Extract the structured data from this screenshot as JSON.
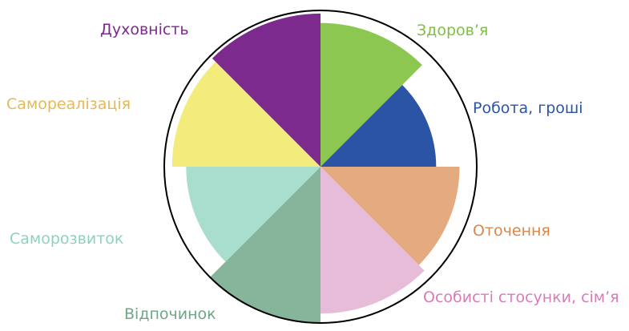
{
  "chart_data": {
    "type": "polar",
    "categories": [
      "Здоров’я",
      "Робота, гроші",
      "Оточення",
      "Особисті стосунки, сім’я",
      "Відпочинок",
      "Саморозвиток",
      "Самореалізація",
      "Духовність"
    ],
    "values": [
      9.2,
      7.4,
      8.9,
      9.4,
      10,
      8.6,
      9.5,
      9.8
    ],
    "rlim": [
      0,
      10
    ],
    "colors": [
      "#8cc751",
      "#2b54a5",
      "#e5ab80",
      "#e6bcd8",
      "#86b59b",
      "#a9ddcd",
      "#f3ec7d",
      "#7d2a8f"
    ],
    "label_colors": [
      "#7fbf45",
      "#2b54a5",
      "#d8884c",
      "#d97bb9",
      "#6fa687",
      "#8fd1bf",
      "#e6b85a",
      "#7d2a8f"
    ]
  }
}
